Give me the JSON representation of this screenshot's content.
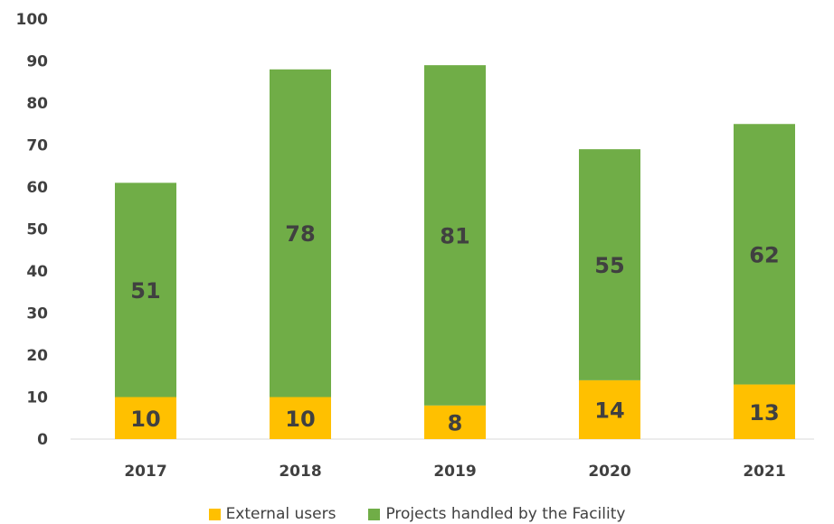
{
  "chart_data": {
    "type": "bar",
    "stacked": true,
    "categories": [
      "2017",
      "2018",
      "2019",
      "2020",
      "2021"
    ],
    "series": [
      {
        "name": "External users",
        "values": [
          10,
          10,
          8,
          14,
          13
        ],
        "color": "#FFC000"
      },
      {
        "name": "Projects handled by the Facility",
        "values": [
          51,
          78,
          81,
          55,
          62
        ],
        "color": "#70AD47"
      }
    ],
    "title": "",
    "xlabel": "",
    "ylabel": "",
    "ylim": [
      0,
      100
    ],
    "yticks": [
      "0",
      "10",
      "20",
      "30",
      "40",
      "50",
      "60",
      "70",
      "80",
      "90",
      "100"
    ],
    "grid": false,
    "legend_position": "bottom"
  }
}
